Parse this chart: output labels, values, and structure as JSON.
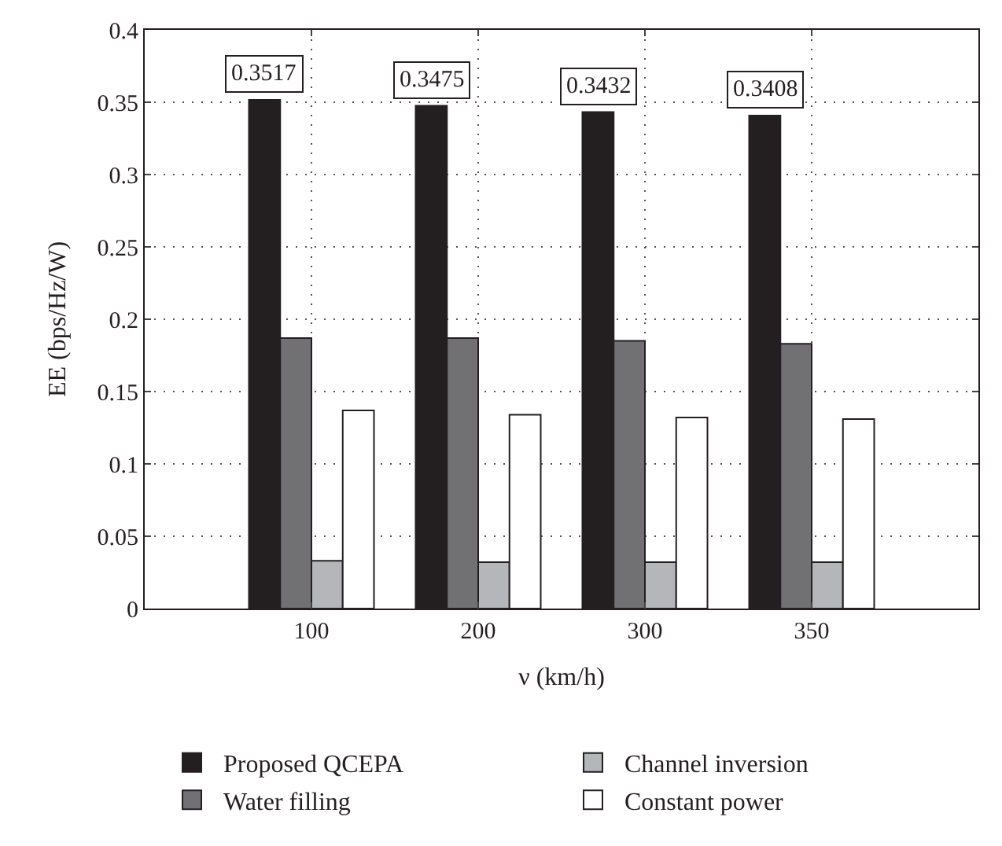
{
  "chart_data": {
    "type": "bar",
    "xlabel": "ν (km/h)",
    "ylabel": "EE (bps/Hz/W)",
    "categories": [
      "100",
      "200",
      "300",
      "350"
    ],
    "series": [
      {
        "name": "Proposed QCEPA",
        "color": "#231f20",
        "values": [
          0.3517,
          0.3475,
          0.3432,
          0.3408
        ],
        "value_labels": [
          "0.3517",
          "0.3475",
          "0.3432",
          "0.3408"
        ]
      },
      {
        "name": "Water filling",
        "color": "#717174",
        "values": [
          0.187,
          0.187,
          0.185,
          0.183
        ]
      },
      {
        "name": "Channel inversion",
        "color": "#b5b6b9",
        "values": [
          0.033,
          0.032,
          0.032,
          0.032
        ]
      },
      {
        "name": "Constant power",
        "color": "#ffffff",
        "values": [
          0.137,
          0.134,
          0.132,
          0.131
        ]
      }
    ],
    "ylim": [
      0,
      0.4
    ],
    "yticks": [
      0,
      0.05,
      0.1,
      0.15,
      0.2,
      0.25,
      0.3,
      0.35,
      0.4
    ],
    "grid": true,
    "legend": "bottom"
  }
}
